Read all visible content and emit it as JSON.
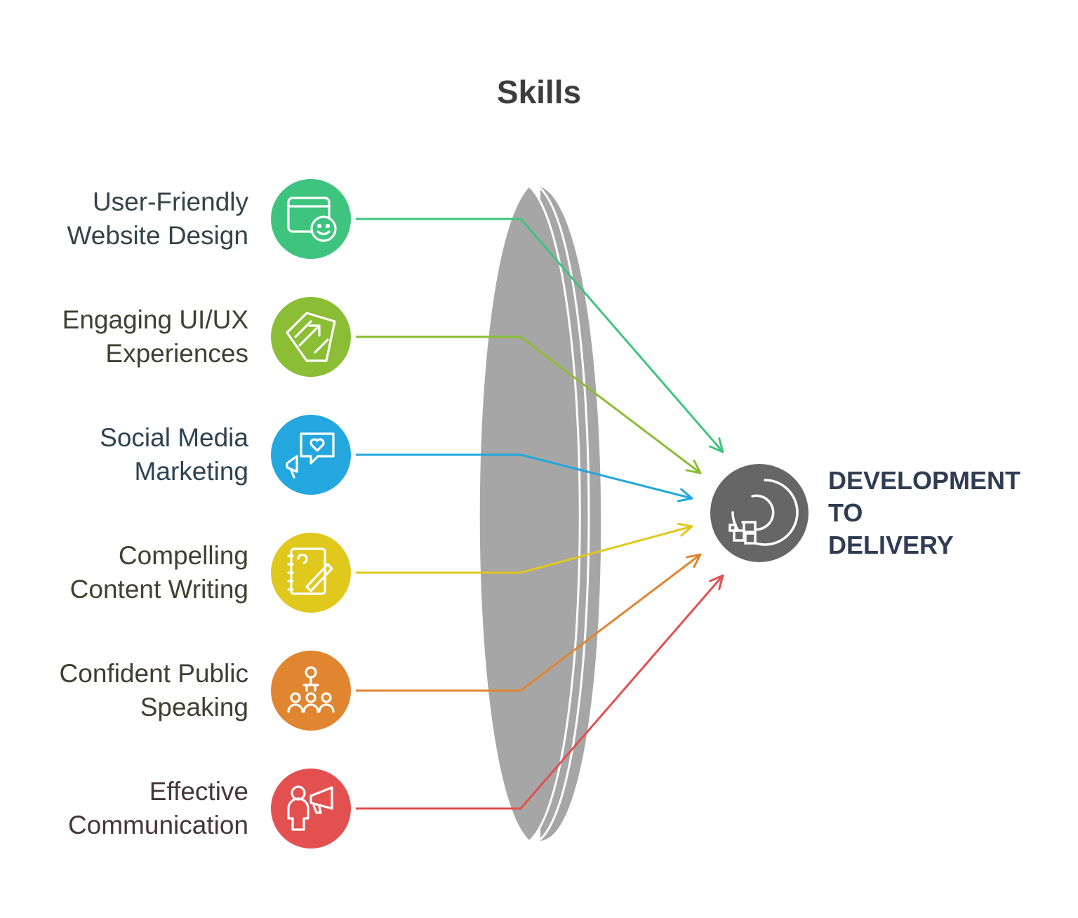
{
  "title": "Skills",
  "skills": [
    {
      "line1": "User-Friendly",
      "line2": "Website Design",
      "color": "#3ec47e",
      "text_color": "#33434a",
      "icon": "browser-smiley-icon"
    },
    {
      "line1": "Engaging UI/UX",
      "line2": "Experiences",
      "color": "#8bbd35",
      "text_color": "#3e4030",
      "icon": "design-arrow-icon"
    },
    {
      "line1": "Social Media",
      "line2": "Marketing",
      "color": "#23a7de",
      "text_color": "#2e4253",
      "icon": "megaphone-heart-icon"
    },
    {
      "line1": "Compelling",
      "line2": "Content Writing",
      "color": "#e0c81c",
      "text_color": "#3f4030",
      "icon": "notebook-pen-icon"
    },
    {
      "line1": "Confident Public",
      "line2": "Speaking",
      "color": "#e08530",
      "text_color": "#403c30",
      "icon": "speaker-audience-icon"
    },
    {
      "line1": "Effective",
      "line2": "Communication",
      "color": "#e25050",
      "text_color": "#46353a",
      "icon": "person-megaphone-icon"
    }
  ],
  "target": {
    "line1": "DEVELOPMENT",
    "line2": "TO",
    "line3": "DELIVERY",
    "color": "#666666",
    "icon": "deployment-icon"
  },
  "lens_color": "#a6a6a6"
}
